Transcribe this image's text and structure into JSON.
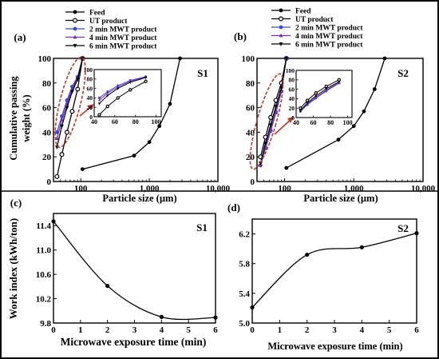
{
  "chart_data": [
    {
      "id": "a",
      "type": "line",
      "panel_label": "(a)",
      "sample_label": "S1",
      "xlabel": "Particle size (µm)",
      "ylabel": "Cumulative passing weight (%)",
      "xscale": "log",
      "xlim": [
        40,
        10000
      ],
      "ylim": [
        0,
        100
      ],
      "xticks": [
        100,
        1000,
        10000
      ],
      "xtick_labels": [
        "100",
        "1,000",
        "10,000"
      ],
      "yticks": [
        0,
        20,
        40,
        60,
        80,
        100
      ],
      "legend_position": "top-center",
      "series": [
        {
          "name": "Feed",
          "marker": "filled-circle",
          "color": "#000000",
          "x": [
            106,
            600,
            1000,
            1400,
            2000,
            2800
          ],
          "y": [
            10,
            21,
            32,
            45,
            63,
            100
          ]
        },
        {
          "name": "UT product",
          "marker": "open-circle",
          "color": "#000000",
          "x": [
            45,
            53,
            63,
            75,
            90,
            106
          ],
          "y": [
            4,
            22,
            40,
            57,
            75,
            100
          ]
        },
        {
          "name": "2 min MWT product",
          "marker": "filled-circle",
          "color": "#3a4bd8",
          "x": [
            45,
            53,
            63,
            75,
            90,
            106
          ],
          "y": [
            40,
            53,
            66,
            77,
            85,
            100
          ]
        },
        {
          "name": "4 min MWT product",
          "marker": "filled-triangle",
          "color": "#7b2fb5",
          "x": [
            45,
            53,
            63,
            75,
            90,
            106
          ],
          "y": [
            35,
            50,
            63,
            75,
            84,
            100
          ]
        },
        {
          "name": "6 min MWT product",
          "marker": "filled-triangle-down",
          "color": "#000000",
          "x": [
            45,
            53,
            63,
            75,
            90,
            106
          ],
          "y": [
            28,
            45,
            60,
            73,
            83,
            100
          ]
        }
      ],
      "inset": {
        "xlim": [
          40,
          105
        ],
        "ylim": [
          0,
          100
        ],
        "xticks": [
          40,
          60,
          80,
          100
        ],
        "yticks": [
          0,
          20,
          40,
          60,
          80,
          100
        ],
        "series": [
          {
            "name": "UT product",
            "marker": "open-circle",
            "color": "#000000",
            "x": [
              45,
              53,
              63,
              75,
              90,
              106
            ],
            "y": [
              4,
              22,
              40,
              57,
              75,
              100
            ]
          },
          {
            "name": "2 min MWT product",
            "marker": "filled-circle",
            "color": "#3a4bd8",
            "x": [
              45,
              53,
              63,
              75,
              90,
              106
            ],
            "y": [
              40,
              53,
              66,
              77,
              85,
              100
            ]
          },
          {
            "name": "4 min MWT product",
            "marker": "filled-triangle",
            "color": "#7b2fb5",
            "x": [
              45,
              53,
              63,
              75,
              90,
              106
            ],
            "y": [
              35,
              50,
              63,
              75,
              84,
              100
            ]
          },
          {
            "name": "6 min MWT product",
            "marker": "filled-triangle-down",
            "color": "#000000",
            "x": [
              45,
              53,
              63,
              75,
              90,
              106
            ],
            "y": [
              28,
              45,
              60,
              73,
              83,
              100
            ]
          }
        ]
      }
    },
    {
      "id": "b",
      "type": "line",
      "panel_label": "(b)",
      "sample_label": "S2",
      "xlabel": "Particle size (µm)",
      "ylabel": "",
      "xscale": "log",
      "xlim": [
        40,
        10000
      ],
      "ylim": [
        0,
        100
      ],
      "xticks": [
        100,
        1000,
        10000
      ],
      "xtick_labels": [
        "100",
        "1,000",
        "10,000"
      ],
      "yticks": [
        0,
        20,
        40,
        60,
        80,
        100
      ],
      "legend_position": "top-center",
      "series": [
        {
          "name": "Feed",
          "marker": "filled-circle",
          "color": "#000000",
          "x": [
            106,
            600,
            1000,
            1400,
            2000,
            2800
          ],
          "y": [
            11,
            34,
            45,
            57,
            75,
            100
          ]
        },
        {
          "name": "UT product",
          "marker": "open-circle",
          "color": "#000000",
          "x": [
            45,
            53,
            63,
            75,
            90,
            106
          ],
          "y": [
            20,
            36,
            52,
            66,
            80,
            100
          ]
        },
        {
          "name": "2 min MWT product",
          "marker": "filled-circle",
          "color": "#3a4bd8",
          "x": [
            45,
            53,
            63,
            75,
            90,
            106
          ],
          "y": [
            13,
            27,
            41,
            56,
            73,
            100
          ]
        },
        {
          "name": "4 min MWT product",
          "marker": "filled-triangle",
          "color": "#7b2fb5",
          "x": [
            45,
            53,
            63,
            75,
            90,
            106
          ],
          "y": [
            14,
            29,
            43,
            58,
            74,
            100
          ]
        },
        {
          "name": "6 min MWT product",
          "marker": "filled-triangle-down",
          "color": "#000000",
          "x": [
            45,
            53,
            63,
            75,
            90,
            106
          ],
          "y": [
            15,
            31,
            46,
            61,
            76,
            100
          ]
        }
      ],
      "inset": {
        "xlim": [
          40,
          105
        ],
        "ylim": [
          0,
          100
        ],
        "xticks": [
          40,
          60,
          80,
          100
        ],
        "yticks": [
          0,
          20,
          40,
          60,
          80,
          100
        ],
        "series": [
          {
            "name": "UT product",
            "marker": "open-circle",
            "color": "#000000",
            "x": [
              45,
              53,
              63,
              75,
              90,
              106
            ],
            "y": [
              20,
              36,
              52,
              66,
              80,
              100
            ]
          },
          {
            "name": "2 min MWT product",
            "marker": "filled-circle",
            "color": "#3a4bd8",
            "x": [
              45,
              53,
              63,
              75,
              90,
              106
            ],
            "y": [
              13,
              27,
              41,
              56,
              73,
              100
            ]
          },
          {
            "name": "4 min MWT product",
            "marker": "filled-triangle",
            "color": "#7b2fb5",
            "x": [
              45,
              53,
              63,
              75,
              90,
              106
            ],
            "y": [
              14,
              29,
              43,
              58,
              74,
              100
            ]
          },
          {
            "name": "6 min MWT product",
            "marker": "filled-triangle-down",
            "color": "#000000",
            "x": [
              45,
              53,
              63,
              75,
              90,
              106
            ],
            "y": [
              15,
              31,
              46,
              61,
              76,
              100
            ]
          }
        ]
      }
    },
    {
      "id": "c",
      "type": "line",
      "panel_label": "(c)",
      "sample_label": "S1",
      "xlabel": "Microwave exposure time (min)",
      "ylabel": "Work index (kWh/ton)",
      "xlim": [
        0,
        6
      ],
      "ylim": [
        9.8,
        11.6
      ],
      "xticks": [
        0,
        1,
        2,
        3,
        4,
        5,
        6
      ],
      "yticks": [
        9.8,
        10.2,
        10.6,
        11.0,
        11.4
      ],
      "series": [
        {
          "marker": "filled-circle",
          "color": "#000000",
          "x": [
            0,
            2,
            4,
            6
          ],
          "y": [
            11.47,
            10.41,
            9.9,
            9.89
          ]
        }
      ]
    },
    {
      "id": "d",
      "type": "line",
      "panel_label": "(d)",
      "sample_label": "S2",
      "xlabel": "Microwave exposure time (min)",
      "ylabel": "",
      "xlim": [
        0,
        6
      ],
      "ylim": [
        5.0,
        6.4
      ],
      "xticks": [
        0,
        1,
        2,
        3,
        4,
        5,
        6
      ],
      "yticks": [
        5.0,
        5.4,
        5.8,
        6.2
      ],
      "series": [
        {
          "marker": "filled-circle",
          "color": "#000000",
          "x": [
            0,
            2,
            4,
            6
          ],
          "y": [
            5.21,
            5.92,
            6.02,
            6.21
          ]
        }
      ]
    }
  ]
}
